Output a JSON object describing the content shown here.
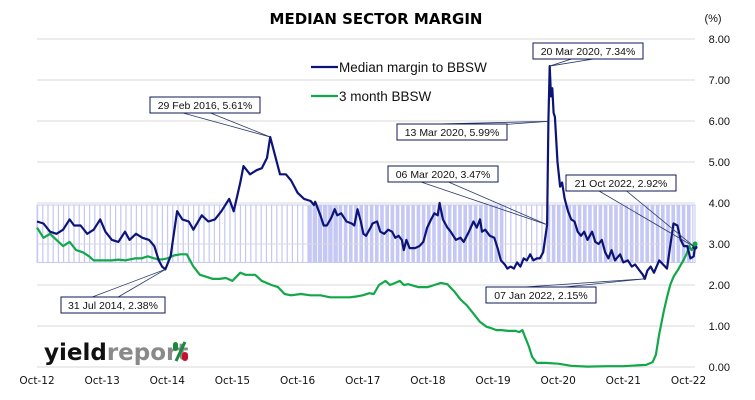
{
  "chart_data": {
    "type": "line",
    "title": "MEDIAN SECTOR MARGIN",
    "ylabel": "(%)",
    "xlabel": "",
    "ylim": [
      0,
      8
    ],
    "yticks": [
      "0.00",
      "1.00",
      "2.00",
      "3.00",
      "4.00",
      "5.00",
      "6.00",
      "7.00",
      "8.00"
    ],
    "xlim": [
      2012.75,
      2022.85
    ],
    "xticks": [
      {
        "label": "Oct-12",
        "x": 2012.75
      },
      {
        "label": "Oct-13",
        "x": 2013.75
      },
      {
        "label": "Oct-14",
        "x": 2014.75
      },
      {
        "label": "Oct-15",
        "x": 2015.75
      },
      {
        "label": "Oct-16",
        "x": 2016.75
      },
      {
        "label": "Oct-17",
        "x": 2017.75
      },
      {
        "label": "Oct-18",
        "x": 2018.75
      },
      {
        "label": "Oct-19",
        "x": 2019.75
      },
      {
        "label": "Oct-20",
        "x": 2020.75
      },
      {
        "label": "Oct-21",
        "x": 2021.75
      },
      {
        "label": "Oct-22",
        "x": 2022.75
      }
    ],
    "grid": true,
    "legend_position": "top-center",
    "band": {
      "name": "range band",
      "y_low": 2.55,
      "y_high": 3.95,
      "color": "#c5c8f5"
    },
    "series": [
      {
        "name": "Median margin to BBSW",
        "color": "#0c1478",
        "points": [
          [
            2012.75,
            3.55
          ],
          [
            2012.85,
            3.5
          ],
          [
            2012.95,
            3.3
          ],
          [
            2013.05,
            3.25
          ],
          [
            2013.15,
            3.35
          ],
          [
            2013.25,
            3.6
          ],
          [
            2013.32,
            3.45
          ],
          [
            2013.42,
            3.45
          ],
          [
            2013.52,
            3.25
          ],
          [
            2013.62,
            3.35
          ],
          [
            2013.72,
            3.6
          ],
          [
            2013.8,
            3.3
          ],
          [
            2013.9,
            3.1
          ],
          [
            2014.0,
            3.05
          ],
          [
            2014.1,
            3.3
          ],
          [
            2014.17,
            3.1
          ],
          [
            2014.27,
            3.25
          ],
          [
            2014.37,
            3.15
          ],
          [
            2014.47,
            3.1
          ],
          [
            2014.55,
            2.95
          ],
          [
            2014.62,
            2.6
          ],
          [
            2014.67,
            2.45
          ],
          [
            2014.72,
            2.38
          ],
          [
            2014.8,
            2.7
          ],
          [
            2014.9,
            3.8
          ],
          [
            2014.98,
            3.6
          ],
          [
            2015.08,
            3.55
          ],
          [
            2015.15,
            3.35
          ],
          [
            2015.28,
            3.7
          ],
          [
            2015.38,
            3.55
          ],
          [
            2015.48,
            3.6
          ],
          [
            2015.58,
            3.8
          ],
          [
            2015.7,
            4.1
          ],
          [
            2015.77,
            3.8
          ],
          [
            2015.87,
            4.5
          ],
          [
            2015.92,
            4.9
          ],
          [
            2016.02,
            4.7
          ],
          [
            2016.12,
            4.8
          ],
          [
            2016.2,
            4.85
          ],
          [
            2016.28,
            5.1
          ],
          [
            2016.33,
            5.61
          ],
          [
            2016.48,
            4.7
          ],
          [
            2016.57,
            4.7
          ],
          [
            2016.65,
            4.55
          ],
          [
            2016.75,
            4.25
          ],
          [
            2016.85,
            4.1
          ],
          [
            2016.95,
            4.05
          ],
          [
            2017.0,
            3.95
          ],
          [
            2017.02,
            4.03
          ],
          [
            2017.1,
            3.7
          ],
          [
            2017.15,
            3.45
          ],
          [
            2017.2,
            3.45
          ],
          [
            2017.27,
            3.65
          ],
          [
            2017.32,
            3.85
          ],
          [
            2017.36,
            3.7
          ],
          [
            2017.42,
            3.75
          ],
          [
            2017.5,
            3.55
          ],
          [
            2017.58,
            3.5
          ],
          [
            2017.62,
            3.45
          ],
          [
            2017.67,
            3.85
          ],
          [
            2017.72,
            3.55
          ],
          [
            2017.76,
            3.25
          ],
          [
            2017.8,
            3.2
          ],
          [
            2017.87,
            3.4
          ],
          [
            2017.9,
            3.5
          ],
          [
            2017.97,
            3.55
          ],
          [
            2018.02,
            3.3
          ],
          [
            2018.08,
            3.25
          ],
          [
            2018.14,
            3.35
          ],
          [
            2018.2,
            3.3
          ],
          [
            2018.25,
            3.15
          ],
          [
            2018.3,
            3.2
          ],
          [
            2018.35,
            3.1
          ],
          [
            2018.38,
            2.85
          ],
          [
            2018.42,
            3.1
          ],
          [
            2018.47,
            2.9
          ],
          [
            2018.55,
            2.9
          ],
          [
            2018.62,
            2.95
          ],
          [
            2018.68,
            3.05
          ],
          [
            2018.74,
            3.4
          ],
          [
            2018.8,
            3.6
          ],
          [
            2018.85,
            3.75
          ],
          [
            2018.9,
            3.7
          ],
          [
            2018.93,
            4.0
          ],
          [
            2018.98,
            3.6
          ],
          [
            2019.05,
            3.4
          ],
          [
            2019.1,
            3.3
          ],
          [
            2019.18,
            3.1
          ],
          [
            2019.25,
            3.15
          ],
          [
            2019.3,
            3.05
          ],
          [
            2019.38,
            3.3
          ],
          [
            2019.45,
            3.55
          ],
          [
            2019.5,
            3.4
          ],
          [
            2019.55,
            3.6
          ],
          [
            2019.58,
            3.3
          ],
          [
            2019.63,
            3.35
          ],
          [
            2019.7,
            3.2
          ],
          [
            2019.77,
            3.15
          ],
          [
            2019.82,
            2.9
          ],
          [
            2019.87,
            2.6
          ],
          [
            2019.93,
            2.5
          ],
          [
            2019.97,
            2.4
          ],
          [
            2020.02,
            2.45
          ],
          [
            2020.07,
            2.4
          ],
          [
            2020.12,
            2.55
          ],
          [
            2020.17,
            2.45
          ],
          [
            2020.22,
            2.65
          ],
          [
            2020.27,
            2.6
          ],
          [
            2020.32,
            2.75
          ],
          [
            2020.37,
            2.6
          ],
          [
            2020.42,
            2.65
          ],
          [
            2020.47,
            2.65
          ],
          [
            2020.52,
            2.8
          ],
          [
            2020.58,
            3.47
          ],
          [
            2020.6,
            5.99
          ],
          [
            2020.62,
            7.34
          ],
          [
            2020.64,
            6.6
          ],
          [
            2020.66,
            6.8
          ],
          [
            2020.68,
            6.2
          ],
          [
            2020.7,
            6.1
          ],
          [
            2020.74,
            5.0
          ],
          [
            2020.78,
            4.4
          ],
          [
            2020.81,
            4.5
          ],
          [
            2020.85,
            4.1
          ],
          [
            2020.9,
            3.8
          ],
          [
            2020.95,
            3.6
          ],
          [
            2021.0,
            3.55
          ],
          [
            2021.05,
            3.3
          ],
          [
            2021.1,
            3.2
          ],
          [
            2021.15,
            3.3
          ],
          [
            2021.2,
            3.1
          ],
          [
            2021.27,
            3.3
          ],
          [
            2021.32,
            3.05
          ],
          [
            2021.37,
            3.0
          ],
          [
            2021.42,
            3.1
          ],
          [
            2021.47,
            2.8
          ],
          [
            2021.52,
            2.65
          ],
          [
            2021.57,
            2.85
          ],
          [
            2021.62,
            2.6
          ],
          [
            2021.7,
            2.75
          ],
          [
            2021.75,
            2.55
          ],
          [
            2021.82,
            2.6
          ],
          [
            2021.88,
            2.45
          ],
          [
            2021.93,
            2.5
          ],
          [
            2022.0,
            2.35
          ],
          [
            2022.05,
            2.25
          ],
          [
            2022.08,
            2.15
          ],
          [
            2022.12,
            2.35
          ],
          [
            2022.17,
            2.45
          ],
          [
            2022.22,
            2.3
          ],
          [
            2022.3,
            2.6
          ],
          [
            2022.36,
            2.5
          ],
          [
            2022.42,
            2.4
          ],
          [
            2022.47,
            2.95
          ],
          [
            2022.52,
            3.5
          ],
          [
            2022.58,
            3.45
          ],
          [
            2022.63,
            3.1
          ],
          [
            2022.68,
            2.95
          ],
          [
            2022.73,
            2.95
          ],
          [
            2022.78,
            2.65
          ],
          [
            2022.83,
            2.7
          ],
          [
            2022.85,
            2.92
          ]
        ]
      },
      {
        "name": "3 month BBSW",
        "color": "#12a84a",
        "points": [
          [
            2012.75,
            3.4
          ],
          [
            2012.85,
            3.15
          ],
          [
            2012.95,
            3.25
          ],
          [
            2013.05,
            3.1
          ],
          [
            2013.15,
            2.95
          ],
          [
            2013.25,
            3.05
          ],
          [
            2013.35,
            2.85
          ],
          [
            2013.45,
            2.8
          ],
          [
            2013.55,
            2.7
          ],
          [
            2013.62,
            2.6
          ],
          [
            2013.75,
            2.6
          ],
          [
            2013.9,
            2.6
          ],
          [
            2014.0,
            2.62
          ],
          [
            2014.1,
            2.6
          ],
          [
            2014.25,
            2.65
          ],
          [
            2014.35,
            2.65
          ],
          [
            2014.45,
            2.7
          ],
          [
            2014.55,
            2.65
          ],
          [
            2014.65,
            2.62
          ],
          [
            2014.75,
            2.65
          ],
          [
            2014.85,
            2.72
          ],
          [
            2014.95,
            2.75
          ],
          [
            2015.05,
            2.75
          ],
          [
            2015.15,
            2.45
          ],
          [
            2015.25,
            2.25
          ],
          [
            2015.35,
            2.2
          ],
          [
            2015.45,
            2.15
          ],
          [
            2015.55,
            2.15
          ],
          [
            2015.65,
            2.17
          ],
          [
            2015.75,
            2.1
          ],
          [
            2015.87,
            2.3
          ],
          [
            2015.95,
            2.25
          ],
          [
            2016.1,
            2.25
          ],
          [
            2016.2,
            2.1
          ],
          [
            2016.35,
            2.0
          ],
          [
            2016.45,
            1.95
          ],
          [
            2016.55,
            1.78
          ],
          [
            2016.65,
            1.75
          ],
          [
            2016.8,
            1.78
          ],
          [
            2016.95,
            1.75
          ],
          [
            2017.1,
            1.75
          ],
          [
            2017.25,
            1.7
          ],
          [
            2017.4,
            1.7
          ],
          [
            2017.55,
            1.7
          ],
          [
            2017.65,
            1.72
          ],
          [
            2017.75,
            1.75
          ],
          [
            2017.85,
            1.8
          ],
          [
            2017.92,
            1.78
          ],
          [
            2018.0,
            2.0
          ],
          [
            2018.1,
            2.1
          ],
          [
            2018.17,
            2.0
          ],
          [
            2018.25,
            2.05
          ],
          [
            2018.32,
            2.1
          ],
          [
            2018.38,
            2.0
          ],
          [
            2018.45,
            2.02
          ],
          [
            2018.6,
            1.95
          ],
          [
            2018.75,
            1.95
          ],
          [
            2018.85,
            2.0
          ],
          [
            2018.95,
            2.05
          ],
          [
            2019.05,
            2.02
          ],
          [
            2019.15,
            1.85
          ],
          [
            2019.25,
            1.65
          ],
          [
            2019.35,
            1.5
          ],
          [
            2019.45,
            1.3
          ],
          [
            2019.55,
            1.1
          ],
          [
            2019.65,
            0.98
          ],
          [
            2019.72,
            0.95
          ],
          [
            2019.8,
            0.9
          ],
          [
            2019.88,
            0.9
          ],
          [
            2019.98,
            0.88
          ],
          [
            2020.1,
            0.88
          ],
          [
            2020.15,
            0.85
          ],
          [
            2020.2,
            0.9
          ],
          [
            2020.25,
            0.7
          ],
          [
            2020.3,
            0.5
          ],
          [
            2020.35,
            0.25
          ],
          [
            2020.42,
            0.1
          ],
          [
            2020.55,
            0.1
          ],
          [
            2020.75,
            0.08
          ],
          [
            2020.95,
            0.03
          ],
          [
            2021.2,
            0.01
          ],
          [
            2021.5,
            0.02
          ],
          [
            2021.75,
            0.02
          ],
          [
            2021.95,
            0.04
          ],
          [
            2022.1,
            0.05
          ],
          [
            2022.2,
            0.12
          ],
          [
            2022.25,
            0.3
          ],
          [
            2022.3,
            0.8
          ],
          [
            2022.37,
            1.35
          ],
          [
            2022.42,
            1.7
          ],
          [
            2022.47,
            2.0
          ],
          [
            2022.52,
            2.2
          ],
          [
            2022.6,
            2.4
          ],
          [
            2022.67,
            2.6
          ],
          [
            2022.72,
            2.75
          ],
          [
            2022.76,
            2.95
          ],
          [
            2022.8,
            2.85
          ],
          [
            2022.85,
            3.0
          ]
        ]
      }
    ],
    "annotations": [
      {
        "text": "29 Feb 2016,  5.61%",
        "x": 2016.33,
        "y": 5.61
      },
      {
        "text": "31 Jul 2014,  2.38%",
        "x": 2014.72,
        "y": 2.38
      },
      {
        "text": "20 Mar 2020,  7.34%",
        "x": 2020.62,
        "y": 7.34
      },
      {
        "text": "13 Mar 2020,  5.99%",
        "x": 2020.6,
        "y": 5.99
      },
      {
        "text": "06 Mar 2020,  3.47%",
        "x": 2020.58,
        "y": 3.47
      },
      {
        "text": "21 Oct 2022,  2.92%",
        "x": 2022.85,
        "y": 2.92
      },
      {
        "text": "07 Jan 2022,  2.15%",
        "x": 2022.08,
        "y": 2.15
      }
    ]
  },
  "logo": {
    "part1": "yield",
    "part2": "report",
    "symbol": "%",
    "color_green": "#1a8a3a",
    "color_red": "#c8102e"
  }
}
